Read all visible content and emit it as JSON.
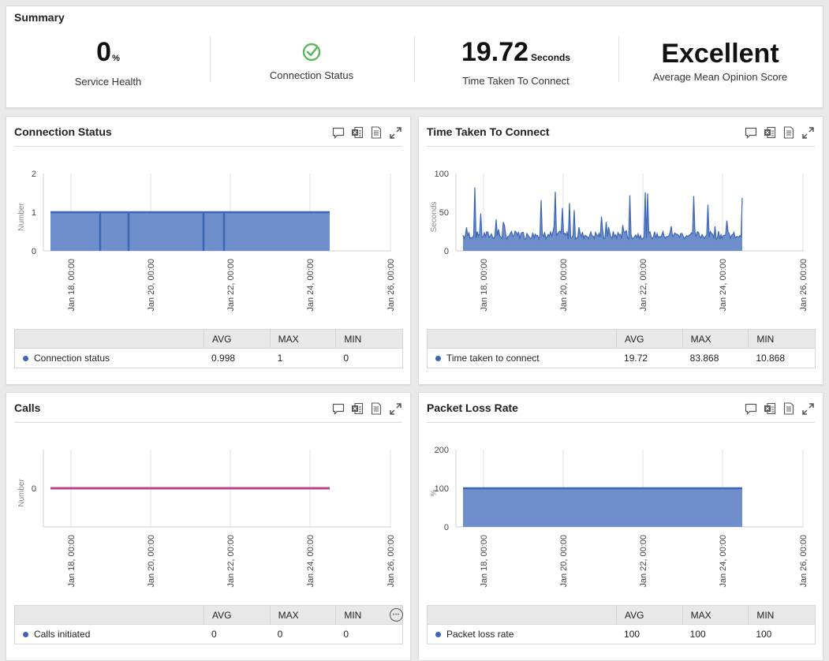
{
  "summary": {
    "title": "Summary",
    "service_health": {
      "value": "0",
      "unit": "%",
      "label": "Service Health"
    },
    "connection_status": {
      "label": "Connection Status",
      "icon": "check-circle-icon",
      "color": "#5cb85c"
    },
    "time_taken": {
      "value": "19.72",
      "unit": "Seconds",
      "label": "Time Taken To Connect"
    },
    "mos": {
      "value": "Excellent",
      "label": "Average Mean Opinion Score"
    }
  },
  "toolbar_icons": [
    "comment-icon",
    "excel-icon",
    "pdf-icon",
    "expand-icon"
  ],
  "stat_headers": {
    "avg": "AVG",
    "max": "MAX",
    "min": "MIN"
  },
  "panels": {
    "connection": {
      "title": "Connection Status",
      "row": {
        "name": "Connection status",
        "avg": "0.998",
        "max": "1",
        "min": "0",
        "color": "#3c66b5"
      }
    },
    "time": {
      "title": "Time Taken To Connect",
      "row": {
        "name": "Time taken to connect",
        "avg": "19.72",
        "max": "83.868",
        "min": "10.868",
        "color": "#3c66b5"
      }
    },
    "calls": {
      "title": "Calls",
      "row": {
        "name": "Calls initiated",
        "avg": "0",
        "max": "0",
        "min": "0",
        "color": "#3c66b5"
      }
    },
    "packet": {
      "title": "Packet Loss Rate",
      "row": {
        "name": "Packet loss rate",
        "avg": "100",
        "max": "100",
        "min": "100",
        "color": "#3c66b5"
      }
    }
  },
  "chart_data": [
    {
      "id": "connection",
      "type": "area",
      "ylabel": "Number",
      "yticks": [
        "0",
        "1",
        "2"
      ],
      "ylim": [
        0,
        2
      ],
      "xticks": [
        "Jan 18, 00:00",
        "Jan 20, 00:00",
        "Jan 22, 00:00",
        "Jan 24, 00:00",
        "Jan 26, 00:00"
      ],
      "series": [
        {
          "name": "Connection status",
          "color": "#3c66b5",
          "x": [
            "Jan 17, 12:00",
            "Jan 24, 12:00"
          ],
          "values": [
            1,
            1
          ],
          "dips": [
            "Jan 18, 19:00",
            "Jan 19, 14:00",
            "Jan 21, 14:00",
            "Jan 22, 02:00"
          ]
        }
      ]
    },
    {
      "id": "time",
      "type": "area",
      "ylabel": "Seconds",
      "yticks": [
        "0",
        "50",
        "100"
      ],
      "ylim": [
        0,
        100
      ],
      "xticks": [
        "Jan 18, 00:00",
        "Jan 20, 00:00",
        "Jan 22, 00:00",
        "Jan 24, 00:00",
        "Jan 26, 00:00"
      ],
      "series": [
        {
          "name": "Time taken to connect",
          "color": "#3c66b5",
          "avg": 19.72,
          "max": 83.868,
          "min": 10.868,
          "x": [
            "Jan 17, 12:00",
            "Jan 24, 12:00"
          ]
        }
      ]
    },
    {
      "id": "calls",
      "type": "line",
      "ylabel": "Number",
      "yticks": [
        "0"
      ],
      "xticks": [
        "Jan 18, 00:00",
        "Jan 20, 00:00",
        "Jan 22, 00:00",
        "Jan 24, 00:00",
        "Jan 26, 00:00"
      ],
      "series": [
        {
          "name": "Calls initiated",
          "color": "#b8428f",
          "x": [
            "Jan 17, 12:00",
            "Jan 24, 12:00"
          ],
          "values": [
            0,
            0
          ]
        }
      ]
    },
    {
      "id": "packet",
      "type": "area",
      "ylabel": "%",
      "yticks": [
        "0",
        "100",
        "200"
      ],
      "ylim": [
        0,
        200
      ],
      "xticks": [
        "Jan 18, 00:00",
        "Jan 20, 00:00",
        "Jan 22, 00:00",
        "Jan 24, 00:00",
        "Jan 26, 00:00"
      ],
      "series": [
        {
          "name": "Packet loss rate",
          "color": "#3c66b5",
          "x": [
            "Jan 17, 12:00",
            "Jan 24, 12:00"
          ],
          "values": [
            100,
            100
          ]
        }
      ]
    }
  ]
}
